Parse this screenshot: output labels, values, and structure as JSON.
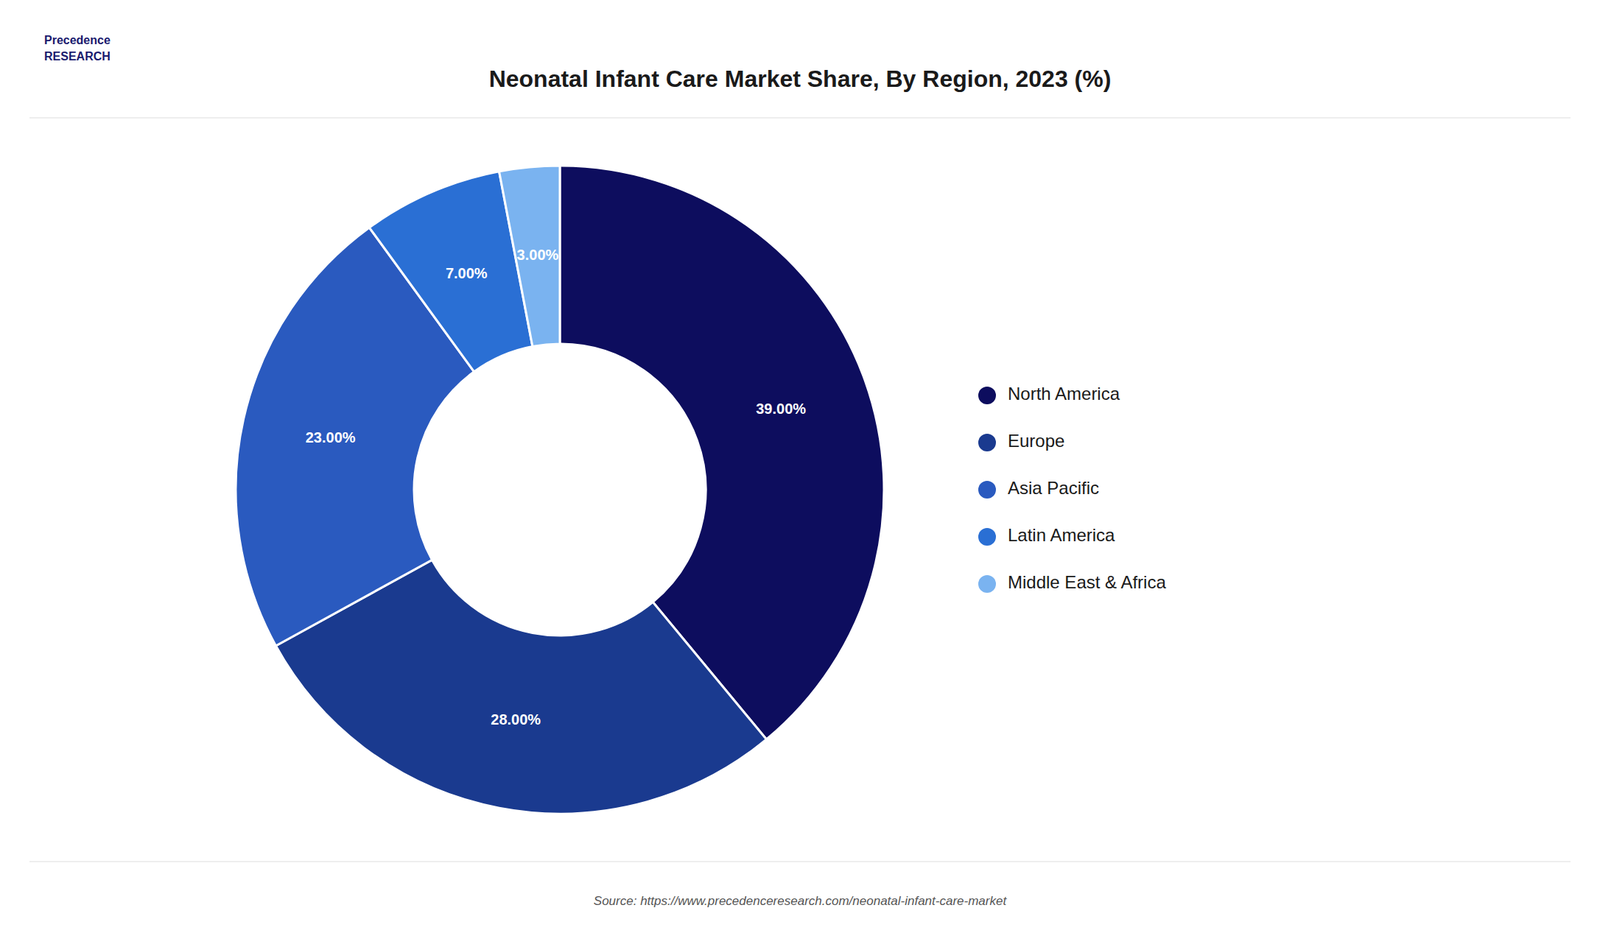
{
  "chart_data": {
    "type": "donut",
    "title": "Neonatal Infant Care Market Share, By Region, 2023 (%)",
    "categories": [
      "North America",
      "Europe",
      "Asia Pacific",
      "Latin America",
      "Middle East & Africa"
    ],
    "values": [
      39.0,
      28.0,
      23.0,
      7.0,
      3.0
    ],
    "value_labels": [
      "39.00%",
      "28.00%",
      "23.00%",
      "7.00%",
      "3.00%"
    ],
    "colors": [
      "#0d0d5e",
      "#1a3a8f",
      "#2a5abf",
      "#2a6fd4",
      "#7ab3f0"
    ],
    "data_labels": true,
    "legend": "right",
    "annotations": [
      "Precedence\nRESEARCH",
      "Source: https://www.precedenceresearch.com/neonatal-infant-care-market"
    ]
  }
}
